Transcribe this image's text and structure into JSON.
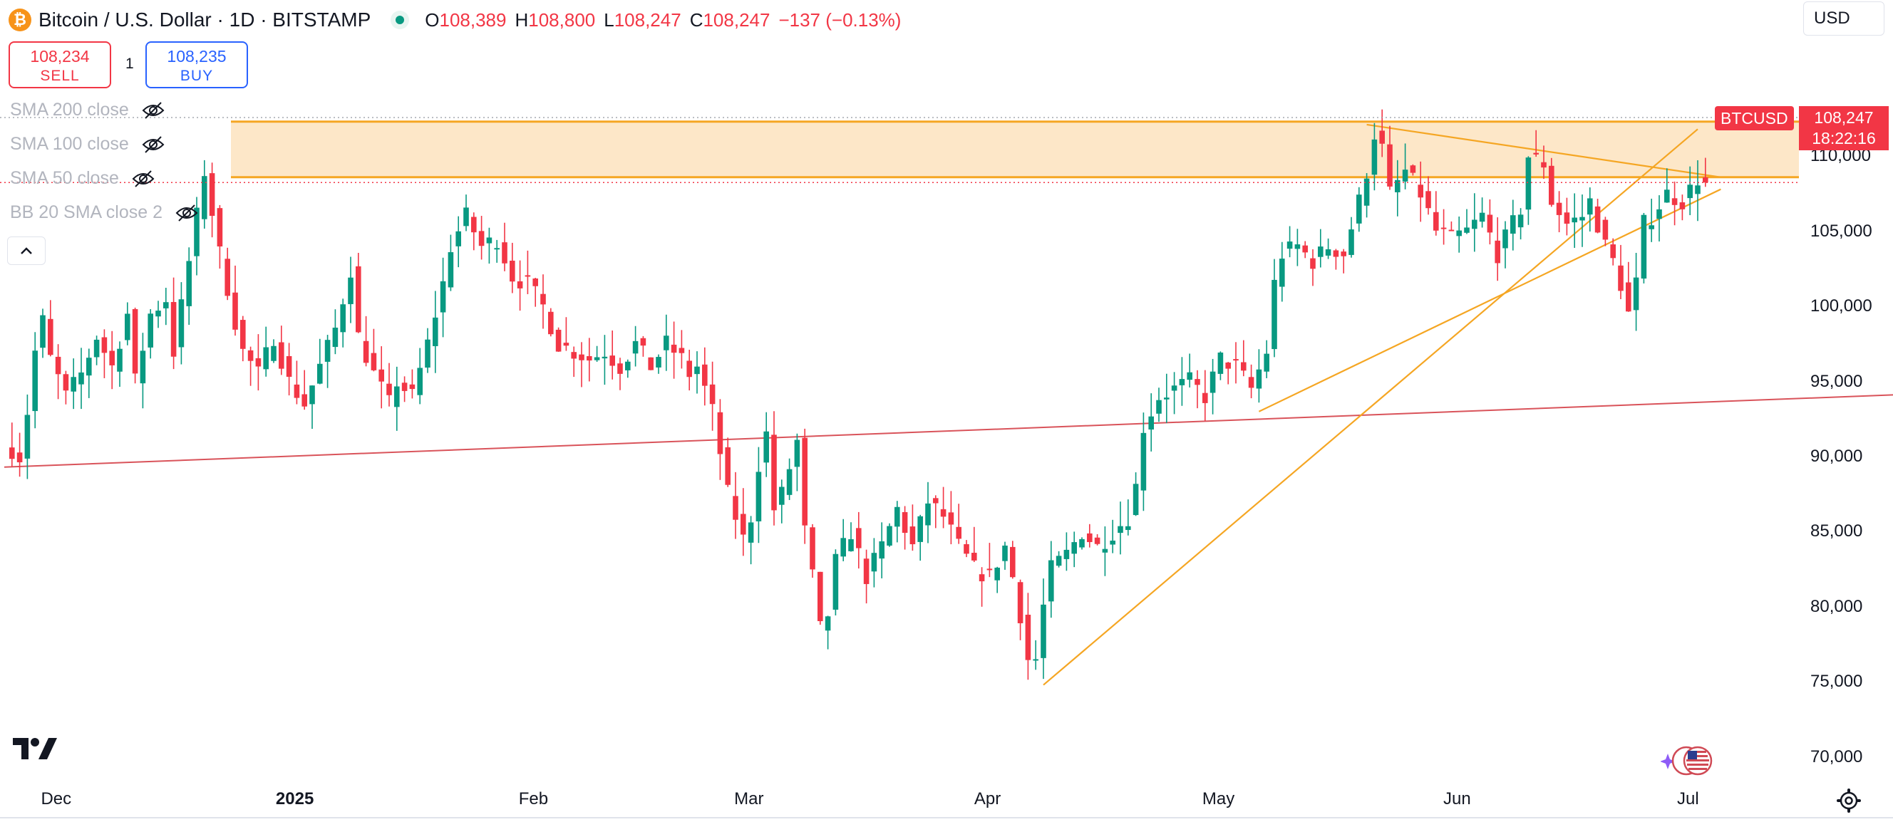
{
  "header": {
    "coin_glyph": "₿",
    "symbol_title": "Bitcoin / U.S. Dollar · 1D · BITSTAMP",
    "open_label": "O",
    "open": "108,389",
    "high_label": "H",
    "high": "108,800",
    "low_label": "L",
    "low": "108,247",
    "close_label": "C",
    "close": "108,247",
    "change": "−137 (−0.13%)"
  },
  "trade": {
    "sell_price": "108,234",
    "sell_label": "SELL",
    "spread": "1",
    "buy_price": "108,235",
    "buy_label": "BUY"
  },
  "indicators": [
    {
      "label": "SMA 200 close"
    },
    {
      "label": "SMA 100 close"
    },
    {
      "label": "SMA 50 close"
    },
    {
      "label": "BB 20 SMA close 2"
    }
  ],
  "currency": "USD",
  "price_tag": {
    "symbol": "BTCUSD",
    "price": "108,247",
    "countdown": "18:22:16"
  },
  "colors": {
    "up": "#089981",
    "down": "#f23645",
    "drawing": "#f5a623",
    "zone": "#fde7c8",
    "trendline_red": "#d9535a"
  },
  "chart_data": {
    "type": "candlestick",
    "title": "Bitcoin / U.S. Dollar · 1D · BITSTAMP",
    "ylim": [
      68000,
      118500
    ],
    "y_ticks": [
      {
        "value": 70000,
        "label": "70,000"
      },
      {
        "value": 75000,
        "label": "75,000"
      },
      {
        "value": 80000,
        "label": "80,000"
      },
      {
        "value": 85000,
        "label": "85,000"
      },
      {
        "value": 90000,
        "label": "90,000"
      },
      {
        "value": 95000,
        "label": "95,000"
      },
      {
        "value": 100000,
        "label": "100,000"
      },
      {
        "value": 105000,
        "label": "105,000"
      },
      {
        "value": 110000,
        "label": "110,000"
      }
    ],
    "x_ticks": [
      {
        "label": "Dec",
        "index": 6,
        "bold": false
      },
      {
        "label": "2025",
        "index": 37,
        "bold": true
      },
      {
        "label": "Feb",
        "index": 68,
        "bold": false
      },
      {
        "label": "Mar",
        "index": 96,
        "bold": false
      },
      {
        "label": "Apr",
        "index": 127,
        "bold": false
      },
      {
        "label": "May",
        "index": 157,
        "bold": false
      },
      {
        "label": "Jun",
        "index": 188,
        "bold": false
      },
      {
        "label": "Jul",
        "index": 218,
        "bold": false
      }
    ],
    "last_price": 108247,
    "series_anchors": [
      [
        0,
        91000
      ],
      [
        2,
        90000
      ],
      [
        3,
        93000
      ],
      [
        4,
        97000
      ],
      [
        5,
        99000
      ],
      [
        6,
        96500
      ],
      [
        8,
        94000
      ],
      [
        10,
        95500
      ],
      [
        12,
        98000
      ],
      [
        14,
        96000
      ],
      [
        16,
        99500
      ],
      [
        17,
        95000
      ],
      [
        19,
        99500
      ],
      [
        21,
        100500
      ],
      [
        22,
        97000
      ],
      [
        24,
        103000
      ],
      [
        25,
        106000
      ],
      [
        26,
        109000
      ],
      [
        28,
        103500
      ],
      [
        30,
        99000
      ],
      [
        31,
        97000
      ],
      [
        33,
        95500
      ],
      [
        35,
        98000
      ],
      [
        37,
        95000
      ],
      [
        39,
        93500
      ],
      [
        41,
        96000
      ],
      [
        43,
        98500
      ],
      [
        45,
        102500
      ],
      [
        46,
        98000
      ],
      [
        48,
        95500
      ],
      [
        50,
        93500
      ],
      [
        51,
        95000
      ],
      [
        53,
        94000
      ],
      [
        55,
        97500
      ],
      [
        57,
        101500
      ],
      [
        58,
        104000
      ],
      [
        60,
        106000
      ],
      [
        62,
        104000
      ],
      [
        64,
        104500
      ],
      [
        66,
        102000
      ],
      [
        68,
        101500
      ],
      [
        70,
        100000
      ],
      [
        72,
        97500
      ],
      [
        74,
        97000
      ],
      [
        76,
        96500
      ],
      [
        78,
        97000
      ],
      [
        80,
        96000
      ],
      [
        82,
        97500
      ],
      [
        84,
        96000
      ],
      [
        86,
        97500
      ],
      [
        88,
        96500
      ],
      [
        89,
        95500
      ],
      [
        90,
        96000
      ],
      [
        92,
        93000
      ],
      [
        94,
        87500
      ],
      [
        96,
        84500
      ],
      [
        97,
        86000
      ],
      [
        98,
        89500
      ],
      [
        99,
        91500
      ],
      [
        100,
        86500
      ],
      [
        101,
        87500
      ],
      [
        103,
        91000
      ],
      [
        104,
        85000
      ],
      [
        105,
        82000
      ],
      [
        106,
        78500
      ],
      [
        107,
        79500
      ],
      [
        108,
        83000
      ],
      [
        110,
        85000
      ],
      [
        112,
        82000
      ],
      [
        114,
        84000
      ],
      [
        116,
        86500
      ],
      [
        118,
        84000
      ],
      [
        120,
        87000
      ],
      [
        122,
        86000
      ],
      [
        124,
        84000
      ],
      [
        126,
        82500
      ],
      [
        128,
        82000
      ],
      [
        130,
        84000
      ],
      [
        131,
        82000
      ],
      [
        132,
        79500
      ],
      [
        133,
        76500
      ],
      [
        134,
        76500
      ],
      [
        135,
        80000
      ],
      [
        136,
        82500
      ],
      [
        138,
        83500
      ],
      [
        140,
        85000
      ],
      [
        142,
        84000
      ],
      [
        144,
        85000
      ],
      [
        146,
        86000
      ],
      [
        147,
        88000
      ],
      [
        148,
        92000
      ],
      [
        150,
        94000
      ],
      [
        152,
        94500
      ],
      [
        154,
        95000
      ],
      [
        156,
        94000
      ],
      [
        158,
        96500
      ],
      [
        160,
        96000
      ],
      [
        162,
        94500
      ],
      [
        164,
        97000
      ],
      [
        165,
        101500
      ],
      [
        166,
        103500
      ],
      [
        168,
        104000
      ],
      [
        170,
        103000
      ],
      [
        172,
        104000
      ],
      [
        174,
        103500
      ],
      [
        176,
        107000
      ],
      [
        177,
        109000
      ],
      [
        178,
        111500
      ],
      [
        179,
        110500
      ],
      [
        180,
        107500
      ],
      [
        182,
        109000
      ],
      [
        184,
        107500
      ],
      [
        186,
        105000
      ],
      [
        188,
        104500
      ],
      [
        190,
        105000
      ],
      [
        192,
        106000
      ],
      [
        194,
        103500
      ],
      [
        196,
        105500
      ],
      [
        197,
        106500
      ],
      [
        198,
        110000
      ],
      [
        200,
        109500
      ],
      [
        201,
        107000
      ],
      [
        203,
        105500
      ],
      [
        205,
        106000
      ],
      [
        206,
        107000
      ],
      [
        207,
        105500
      ],
      [
        208,
        104000
      ],
      [
        209,
        103000
      ],
      [
        210,
        101500
      ],
      [
        211,
        99500
      ],
      [
        212,
        101500
      ],
      [
        213,
        105500
      ],
      [
        214,
        106000
      ],
      [
        216,
        107500
      ],
      [
        218,
        107000
      ],
      [
        220,
        108500
      ],
      [
        221,
        108247
      ]
    ],
    "drawings": {
      "resistance_zone": [
        108600,
        112300
      ],
      "support_line": {
        "from": [
          0,
          89300
        ],
        "to": [
          250,
          94200
        ]
      },
      "triangle_upper": {
        "from": [
          177,
          112100
        ],
        "to": [
          223,
          108600
        ]
      },
      "triangle_lower": {
        "from": [
          163,
          93000
        ],
        "to": [
          223,
          107800
        ]
      },
      "steep_trendline": {
        "from": [
          135,
          74800
        ],
        "to": [
          220,
          111800
        ]
      }
    }
  }
}
